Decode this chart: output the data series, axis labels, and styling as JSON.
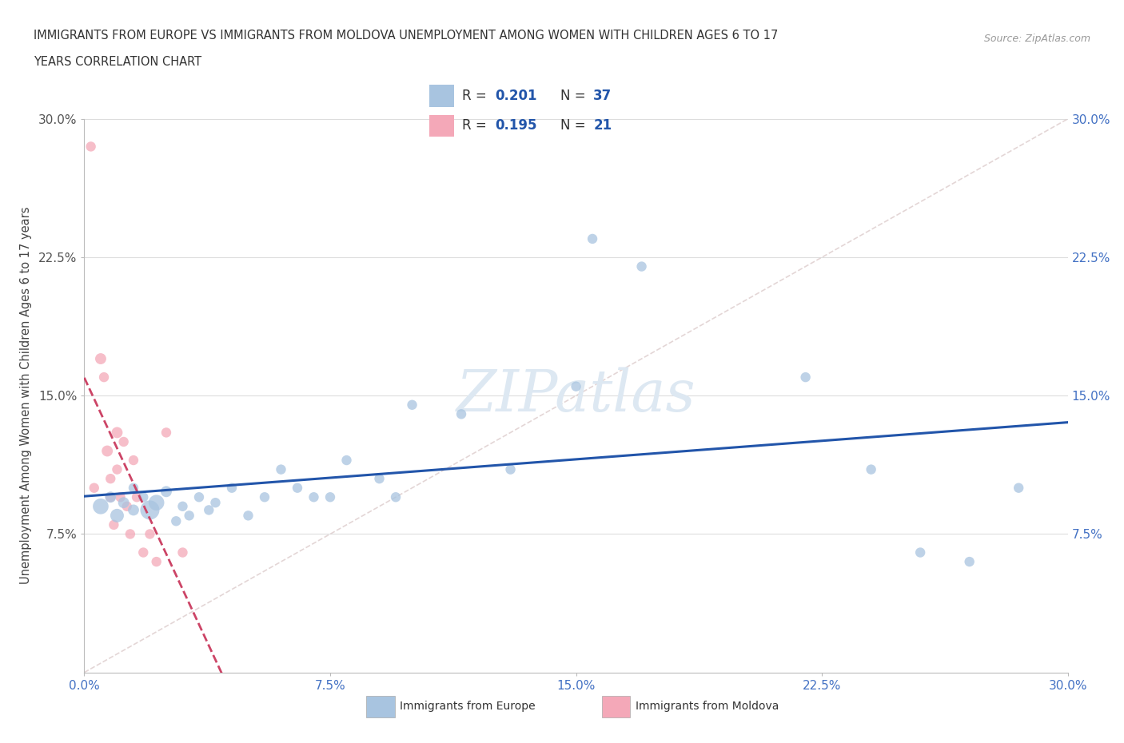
{
  "title_line1": "IMMIGRANTS FROM EUROPE VS IMMIGRANTS FROM MOLDOVA UNEMPLOYMENT AMONG WOMEN WITH CHILDREN AGES 6 TO 17",
  "title_line2": "YEARS CORRELATION CHART",
  "source": "Source: ZipAtlas.com",
  "ylabel": "Unemployment Among Women with Children Ages 6 to 17 years",
  "xlim": [
    0.0,
    0.3
  ],
  "ylim": [
    0.0,
    0.3
  ],
  "xticks": [
    0.0,
    0.075,
    0.15,
    0.225,
    0.3
  ],
  "yticks": [
    0.075,
    0.15,
    0.225,
    0.3
  ],
  "xticklabels": [
    "0.0%",
    "7.5%",
    "15.0%",
    "22.5%",
    "30.0%"
  ],
  "yticklabels": [
    "7.5%",
    "15.0%",
    "22.5%",
    "30.0%"
  ],
  "europe_R": "0.201",
  "europe_N": "37",
  "moldova_R": "0.195",
  "moldova_N": "21",
  "europe_color": "#a8c4e0",
  "moldova_color": "#f4a8b8",
  "trendline_europe_color": "#2255aa",
  "trendline_moldova_color": "#cc4466",
  "diag_color": "#ddcccc",
  "watermark_color": "#dde8f2",
  "europe_x": [
    0.005,
    0.008,
    0.01,
    0.012,
    0.015,
    0.015,
    0.018,
    0.02,
    0.022,
    0.025,
    0.028,
    0.03,
    0.032,
    0.035,
    0.038,
    0.04,
    0.045,
    0.05,
    0.055,
    0.06,
    0.065,
    0.07,
    0.075,
    0.08,
    0.09,
    0.095,
    0.1,
    0.115,
    0.13,
    0.15,
    0.155,
    0.17,
    0.22,
    0.24,
    0.255,
    0.27,
    0.285
  ],
  "europe_y": [
    0.09,
    0.095,
    0.085,
    0.092,
    0.088,
    0.1,
    0.095,
    0.088,
    0.092,
    0.098,
    0.082,
    0.09,
    0.085,
    0.095,
    0.088,
    0.092,
    0.1,
    0.085,
    0.095,
    0.11,
    0.1,
    0.095,
    0.095,
    0.115,
    0.105,
    0.095,
    0.145,
    0.14,
    0.11,
    0.155,
    0.235,
    0.22,
    0.16,
    0.11,
    0.065,
    0.06,
    0.1
  ],
  "europe_sizes": [
    200,
    100,
    150,
    100,
    100,
    80,
    80,
    300,
    200,
    100,
    80,
    80,
    80,
    80,
    80,
    80,
    80,
    80,
    80,
    80,
    80,
    80,
    80,
    80,
    80,
    80,
    80,
    80,
    80,
    80,
    80,
    80,
    80,
    80,
    80,
    80,
    80
  ],
  "moldova_x": [
    0.002,
    0.003,
    0.005,
    0.006,
    0.007,
    0.008,
    0.008,
    0.009,
    0.01,
    0.01,
    0.011,
    0.012,
    0.013,
    0.014,
    0.015,
    0.016,
    0.018,
    0.02,
    0.022,
    0.025,
    0.03
  ],
  "moldova_y": [
    0.285,
    0.1,
    0.17,
    0.16,
    0.12,
    0.095,
    0.105,
    0.08,
    0.13,
    0.11,
    0.095,
    0.125,
    0.09,
    0.075,
    0.115,
    0.095,
    0.065,
    0.075,
    0.06,
    0.13,
    0.065
  ],
  "moldova_sizes": [
    80,
    80,
    100,
    80,
    100,
    80,
    80,
    80,
    100,
    80,
    80,
    80,
    80,
    80,
    80,
    80,
    80,
    80,
    80,
    80,
    80
  ]
}
